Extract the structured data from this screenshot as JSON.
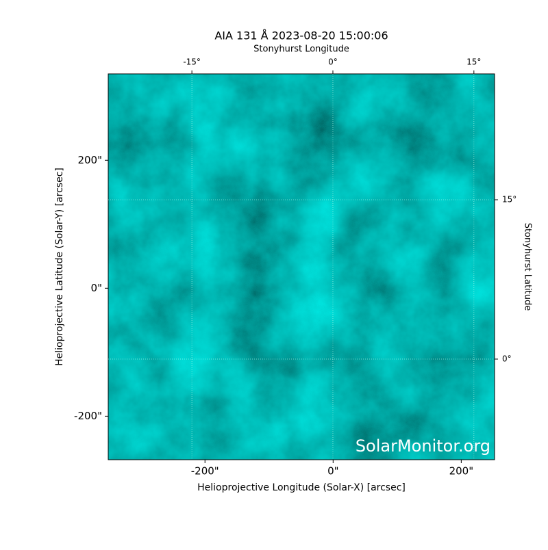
{
  "chart_data": {
    "type": "image",
    "title": "AIA 131 Å 2023-08-20 15:00:06",
    "xlabel": "Helioprojective Longitude (Solar-X) [arcsec]",
    "ylabel": "Helioprojective Latitude (Solar-Y) [arcsec]",
    "x2label": "Stonyhurst Longitude",
    "y2label": "Stonyhurst Latitude",
    "watermark": "SolarMonitor.org",
    "xlim": [
      -351,
      252
    ],
    "ylim": [
      -268,
      335
    ],
    "xticks": [
      {
        "value": -200,
        "label": "-200\""
      },
      {
        "value": 0,
        "label": "0\""
      },
      {
        "value": 200,
        "label": "200\""
      }
    ],
    "yticks": [
      {
        "value": -200,
        "label": "-200\""
      },
      {
        "value": 0,
        "label": "0\""
      },
      {
        "value": 200,
        "label": "200\""
      }
    ],
    "x2lim": [
      -23.9,
      17.2
    ],
    "x2ticks": [
      {
        "value": -15,
        "label": "-15°"
      },
      {
        "value": 0,
        "label": "0°"
      },
      {
        "value": 15,
        "label": "15°"
      }
    ],
    "y2lim": [
      -9.47,
      26.85
    ],
    "y2ticks": [
      {
        "value": 0,
        "label": "0°"
      },
      {
        "value": 15,
        "label": "15°"
      }
    ],
    "grid": true
  }
}
